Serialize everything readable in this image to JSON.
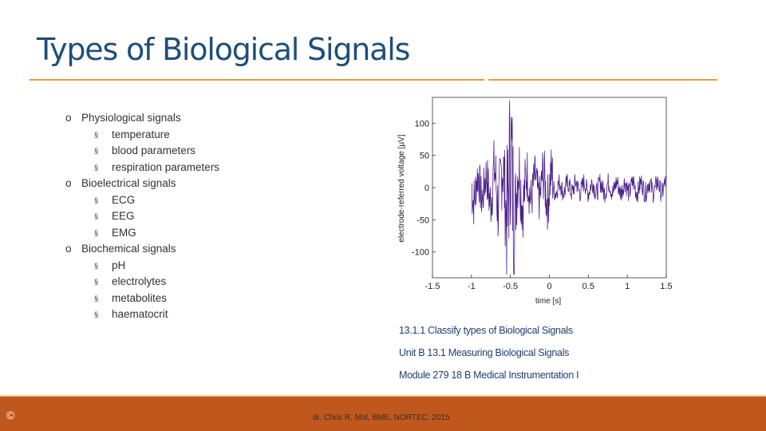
{
  "slide": {
    "title": "Types of Biological Signals",
    "accent_color": "#e0a040",
    "title_color": "#1f4e79",
    "footer_color": "#c0581e"
  },
  "bullets": [
    {
      "level": 1,
      "marker": "o",
      "text": "Physiological signals"
    },
    {
      "level": 2,
      "marker": "§",
      "text": "temperature"
    },
    {
      "level": 2,
      "marker": "§",
      "text": "blood parameters"
    },
    {
      "level": 2,
      "marker": "§",
      "text": "respiration parameters"
    },
    {
      "level": 1,
      "marker": "o",
      "text": "Bioelectrical signals"
    },
    {
      "level": 2,
      "marker": "§",
      "text": "ECG"
    },
    {
      "level": 2,
      "marker": "§",
      "text": "EEG"
    },
    {
      "level": 2,
      "marker": "§",
      "text": "EMG"
    },
    {
      "level": 1,
      "marker": "o",
      "text": "Biochemical signals"
    },
    {
      "level": 2,
      "marker": "§",
      "text": "pH"
    },
    {
      "level": 2,
      "marker": "§",
      "text": "electrolytes"
    },
    {
      "level": 2,
      "marker": "§",
      "text": "metabolites"
    },
    {
      "level": 2,
      "marker": "§",
      "text": "haematocrit"
    }
  ],
  "chart_data": {
    "type": "line",
    "xlabel": "time [s]",
    "ylabel": "electrode-referred voltage [μV]",
    "xlim": [
      -1.5,
      1.5
    ],
    "ylim": [
      -140,
      140
    ],
    "xticks": [
      "-1.5",
      "-1",
      "-0.5",
      "0",
      "0.5",
      "1",
      "1.5"
    ],
    "yticks": [
      "100",
      "50",
      "0",
      "-50",
      "-100"
    ],
    "grid": false,
    "series_color": "#4b1f8c"
  },
  "info": {
    "line1": "13.1.1 Classify types of Biological Signals",
    "line2": "Unit B 13.1 Measuring Biological Signals",
    "line3": "Module 279 18 B Medical Instrumentation I"
  },
  "footer": {
    "copyright": "©",
    "credit": "dr. Chris R. Mol, BME, NORTEC, 2015"
  }
}
